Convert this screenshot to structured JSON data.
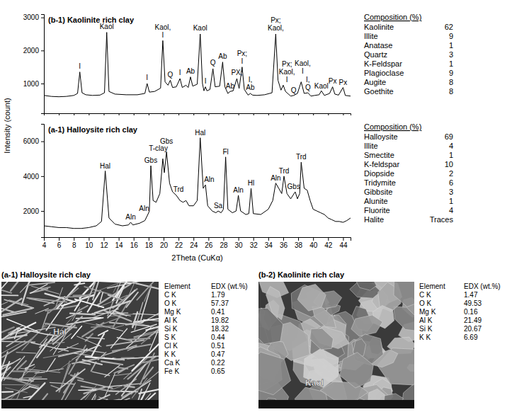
{
  "chart_data": [
    {
      "type": "line",
      "title": "(b-1) Kaolinite rich clay",
      "color": "#000000",
      "grid": false,
      "tick_labels": "y",
      "xlim": [
        4,
        45
      ],
      "xticks": [
        4,
        6,
        8,
        10,
        12,
        14,
        16,
        18,
        20,
        22,
        24,
        26,
        28,
        30,
        32,
        34,
        36,
        38,
        40,
        42,
        44
      ],
      "ylim": [
        100,
        3100
      ],
      "yticks": [
        1000,
        2000,
        3000
      ],
      "x": [
        4.0,
        5.0,
        6.0,
        7.0,
        8.0,
        8.5,
        8.8,
        9.1,
        9.6,
        10.5,
        11.5,
        12.1,
        12.4,
        12.7,
        13.5,
        15.0,
        16.5,
        17.5,
        17.8,
        18.1,
        18.8,
        19.6,
        19.9,
        20.2,
        20.6,
        20.9,
        21.2,
        21.7,
        22.2,
        22.5,
        23.0,
        23.3,
        23.6,
        23.9,
        24.5,
        24.9,
        25.2,
        25.4,
        25.6,
        25.8,
        26.2,
        26.6,
        26.9,
        27.5,
        27.9,
        28.2,
        28.6,
        28.9,
        29.3,
        29.8,
        30.1,
        30.5,
        30.8,
        31.3,
        31.6,
        31.9,
        32.5,
        33.5,
        34.5,
        35.0,
        35.3,
        35.7,
        36.0,
        36.3,
        37.0,
        37.4,
        37.9,
        38.4,
        38.8,
        39.3,
        39.7,
        40.2,
        40.8,
        41.1,
        41.5,
        42.2,
        42.6,
        42.9,
        43.4,
        44.0,
        44.3,
        45.0
      ],
      "values": [
        640,
        610,
        600,
        610,
        640,
        700,
        1350,
        720,
        660,
        640,
        650,
        720,
        2550,
        760,
        680,
        660,
        660,
        700,
        1000,
        740,
        760,
        860,
        2300,
        1050,
        950,
        1100,
        880,
        900,
        1150,
        880,
        950,
        880,
        1200,
        920,
        980,
        2500,
        1000,
        780,
        900,
        780,
        820,
        1450,
        900,
        920,
        1650,
        900,
        700,
        760,
        780,
        1150,
        850,
        1500,
        820,
        650,
        700,
        650,
        640,
        660,
        720,
        2500,
        1100,
        800,
        950,
        760,
        620,
        640,
        700,
        1050,
        700,
        720,
        620,
        640,
        660,
        780,
        640,
        700,
        900,
        680,
        650,
        880,
        640,
        620
      ],
      "annotations": [
        {
          "text": "I",
          "x": 8.8,
          "y": 1450
        },
        {
          "text": "Kaol",
          "x": 12.4,
          "y": 2650
        },
        {
          "text": "I",
          "x": 17.8,
          "y": 1100
        },
        {
          "text": "Kaol, I",
          "x": 19.9,
          "y": 2400
        },
        {
          "text": "Q",
          "x": 20.9,
          "y": 1200
        },
        {
          "text": "I",
          "x": 22.2,
          "y": 1250
        },
        {
          "text": "Ab",
          "x": 23.6,
          "y": 1300
        },
        {
          "text": "Kaol",
          "x": 24.9,
          "y": 2600
        },
        {
          "text": "I",
          "x": 25.6,
          "y": 1000
        },
        {
          "text": "Q",
          "x": 26.6,
          "y": 1550
        },
        {
          "text": "Ab",
          "x": 27.9,
          "y": 1750
        },
        {
          "text": "Ab",
          "x": 28.9,
          "y": 840
        },
        {
          "text": "PX;",
          "x": 29.8,
          "y": 1250
        },
        {
          "text": "Px; I",
          "x": 30.5,
          "y": 1600
        },
        {
          "text": "I, Ab",
          "x": 31.6,
          "y": 800
        },
        {
          "text": "Px; Kaol,",
          "x": 35.0,
          "y": 2600
        },
        {
          "text": "Px; Kaol, I",
          "x": 36.5,
          "y": 1050
        },
        {
          "text": "Q",
          "x": 37.4,
          "y": 720
        },
        {
          "text": "Kaol, I",
          "x": 38.6,
          "y": 1300
        },
        {
          "text": "I, Q",
          "x": 39.3,
          "y": 800
        },
        {
          "text": "Kaol",
          "x": 41.1,
          "y": 860
        },
        {
          "text": "Px",
          "x": 42.6,
          "y": 1000
        },
        {
          "text": "Px",
          "x": 44.0,
          "y": 960
        }
      ],
      "composition": {
        "title": "Composition (%)",
        "rows": [
          [
            "Kaolinite",
            62
          ],
          [
            "Illite",
            9
          ],
          [
            "Anatase",
            1
          ],
          [
            "Quartz",
            3
          ],
          [
            "K-Feldspar",
            1
          ],
          [
            "Plagioclase",
            9
          ],
          [
            "Augite",
            8
          ],
          [
            "Goethite",
            8
          ]
        ]
      }
    },
    {
      "type": "line",
      "title": "(a-1) Halloysite rich clay",
      "color": "#000000",
      "grid": false,
      "x_label": "2Theta (CuKα)",
      "y_label": "Intensity (count)",
      "xlim": [
        4,
        45
      ],
      "xticks": [
        4,
        6,
        8,
        10,
        12,
        14,
        16,
        18,
        20,
        22,
        24,
        26,
        28,
        30,
        32,
        34,
        36,
        38,
        40,
        42,
        44
      ],
      "ylim": [
        500,
        7000
      ],
      "yticks": [
        2000,
        4000,
        6000
      ],
      "x": [
        4.0,
        5.0,
        6.0,
        7.0,
        8.0,
        9.0,
        10.0,
        11.0,
        11.7,
        12.2,
        12.7,
        13.5,
        14.5,
        15.3,
        15.6,
        15.9,
        16.8,
        17.5,
        17.9,
        18.1,
        18.3,
        18.6,
        19.0,
        19.5,
        19.9,
        20.1,
        20.4,
        20.8,
        21.2,
        21.7,
        22.2,
        22.6,
        23.0,
        23.4,
        24.0,
        24.5,
        24.9,
        25.3,
        25.6,
        25.9,
        26.5,
        27.0,
        27.3,
        27.7,
        28.0,
        28.3,
        28.6,
        29.2,
        29.7,
        30.0,
        30.3,
        31.0,
        31.4,
        31.7,
        32.0,
        33.0,
        34.0,
        34.6,
        35.0,
        35.4,
        35.8,
        36.1,
        36.5,
        37.0,
        37.6,
        37.9,
        38.2,
        38.4,
        38.8,
        39.2,
        39.6,
        40.0,
        40.5,
        41.0,
        41.5,
        42.0,
        42.5,
        43.0,
        43.5,
        44.0,
        44.5,
        45.0
      ],
      "values": [
        1150,
        1100,
        1050,
        1050,
        1000,
        1000,
        1050,
        1150,
        1400,
        4300,
        1600,
        1250,
        1150,
        1200,
        1350,
        1200,
        1300,
        1450,
        1800,
        2000,
        4600,
        2600,
        2500,
        3000,
        5000,
        4200,
        5400,
        3600,
        3100,
        2900,
        2600,
        2500,
        2600,
        2300,
        2300,
        2600,
        6200,
        3300,
        3500,
        2300,
        2000,
        1900,
        2000,
        1900,
        2100,
        5100,
        2100,
        1900,
        2000,
        2900,
        2000,
        1800,
        1850,
        3300,
        1850,
        1800,
        2100,
        2600,
        3600,
        3300,
        3000,
        4000,
        3000,
        2700,
        3100,
        2700,
        3000,
        4800,
        3300,
        3200,
        2600,
        2100,
        2000,
        1900,
        1800,
        1600,
        1500,
        1400,
        1400,
        1350,
        1450,
        1600
      ],
      "annotations": [
        {
          "text": "Hal",
          "x": 12.2,
          "y": 4450
        },
        {
          "text": "Aln",
          "x": 15.6,
          "y": 1500
        },
        {
          "text": "Aln",
          "x": 17.4,
          "y": 2000
        },
        {
          "text": "Gbs",
          "x": 18.3,
          "y": 4750
        },
        {
          "text": "T-clay",
          "x": 19.3,
          "y": 5450
        },
        {
          "text": "Gbs",
          "x": 20.4,
          "y": 5850
        },
        {
          "text": "Trd",
          "x": 22.0,
          "y": 3100
        },
        {
          "text": "Hal",
          "x": 24.9,
          "y": 6350
        },
        {
          "text": "Aln",
          "x": 26.1,
          "y": 3650
        },
        {
          "text": "Sa",
          "x": 27.3,
          "y": 2150
        },
        {
          "text": "Fl",
          "x": 28.3,
          "y": 5250
        },
        {
          "text": "Aln",
          "x": 30.0,
          "y": 3050
        },
        {
          "text": "Hl",
          "x": 31.7,
          "y": 3450
        },
        {
          "text": "Aln",
          "x": 35.0,
          "y": 3750
        },
        {
          "text": "Trd",
          "x": 36.1,
          "y": 4150
        },
        {
          "text": "Gbs",
          "x": 37.4,
          "y": 3250
        },
        {
          "text": "Trd",
          "x": 38.4,
          "y": 4950
        }
      ],
      "composition": {
        "title": "Composition (%)",
        "rows": [
          [
            "Halloysite",
            69
          ],
          [
            "Illite",
            4
          ],
          [
            "Smectite",
            1
          ],
          [
            "K-feldspar",
            10
          ],
          [
            "Diopside",
            2
          ],
          [
            "Tridymite",
            6
          ],
          [
            "Gibbsite",
            3
          ],
          [
            "Alunite",
            1
          ],
          [
            "Fluorite",
            4
          ],
          [
            "Halite",
            "Traces"
          ]
        ]
      }
    }
  ],
  "sem_panels": [
    {
      "title": "(a-1) Halloysite rich clay",
      "label": "Hal",
      "header": [
        "Element",
        "EDX (wt.%)"
      ],
      "rows": [
        [
          "C K",
          1.79
        ],
        [
          "O K",
          57.37
        ],
        [
          "Mg K",
          0.41
        ],
        [
          "Al K",
          19.82
        ],
        [
          "Si K",
          18.32
        ],
        [
          "S K",
          0.44
        ],
        [
          "Cl K",
          0.51
        ],
        [
          "K K",
          0.47
        ],
        [
          "Ca K",
          0.22
        ],
        [
          "Fe K",
          0.65
        ]
      ]
    },
    {
      "title": "(b-2) Kaolinite rich clay",
      "label": "Kaol",
      "header": [
        "Element",
        "EDX (wt.%)"
      ],
      "rows": [
        [
          "C K",
          1.47
        ],
        [
          "O K",
          49.53
        ],
        [
          "Mg K",
          0.16
        ],
        [
          "Al K",
          21.49
        ],
        [
          "Si K",
          20.67
        ],
        [
          "K K",
          6.69
        ]
      ]
    }
  ]
}
